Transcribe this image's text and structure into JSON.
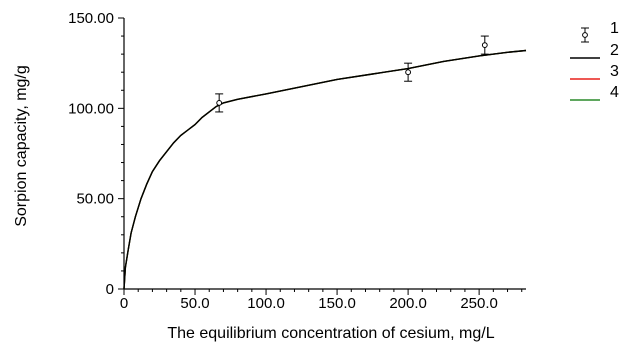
{
  "chart_data": {
    "type": "line",
    "xlabel": "The equilibrium concentration of cesium, mg/L",
    "ylabel": "Sorpion capacity, mg/g",
    "xlim": [
      0,
      283
    ],
    "ylim": [
      0,
      150
    ],
    "x_ticks": [
      0,
      50,
      100,
      150,
      200,
      250
    ],
    "x_tick_labels": [
      "0",
      "50.0",
      "100.0",
      "150.0",
      "200.0",
      "250.0"
    ],
    "y_ticks": [
      0,
      50,
      100,
      150
    ],
    "y_tick_labels": [
      "0",
      "50.00",
      "100.00",
      "150.00"
    ],
    "legend_position": "right",
    "series": [
      {
        "name": "1",
        "kind": "points-with-error-bars",
        "color": "#000000",
        "x": [
          67,
          200,
          254
        ],
        "y": [
          103,
          120,
          135
        ],
        "err": [
          5,
          5,
          5
        ]
      },
      {
        "name": "2",
        "kind": "line",
        "color": "#000000",
        "x": [
          0,
          1,
          3,
          5,
          8,
          12,
          16,
          20,
          25,
          30,
          35,
          40,
          45,
          50,
          55,
          60,
          65,
          70,
          80,
          100,
          125,
          150,
          175,
          200,
          225,
          250,
          270,
          283
        ],
        "y": [
          0,
          12,
          22,
          31,
          40,
          50,
          58,
          65,
          71,
          76,
          81,
          85,
          88,
          91,
          95,
          98,
          101,
          103,
          105,
          108,
          112,
          116,
          119,
          122,
          126,
          129,
          131,
          132
        ]
      },
      {
        "name": "3",
        "kind": "line",
        "color": "#e8211c",
        "x": [
          0,
          1,
          3,
          5,
          8,
          12,
          16,
          20,
          25,
          30,
          35,
          40,
          45,
          50,
          55,
          60,
          65,
          70,
          80,
          100,
          125,
          150,
          175,
          200,
          225,
          250,
          270,
          283
        ],
        "y": [
          0,
          12,
          22,
          31,
          40,
          50,
          58,
          65,
          71,
          76,
          81,
          85,
          88,
          91,
          95,
          98,
          101,
          103,
          105,
          108,
          112,
          116,
          119,
          122,
          126,
          129,
          131,
          132
        ]
      },
      {
        "name": "4",
        "kind": "line",
        "color": "#2a8a2a",
        "x": [
          0,
          1,
          3,
          5,
          8,
          12,
          16,
          20,
          25,
          30,
          35,
          40,
          45,
          50,
          55,
          60,
          65,
          70,
          80,
          100,
          125,
          150,
          175,
          200,
          225,
          250,
          270,
          283
        ],
        "y": [
          0,
          12,
          22,
          31,
          40,
          50,
          58,
          65,
          71,
          76,
          81,
          85,
          88,
          91,
          95,
          98,
          101,
          103,
          105,
          108,
          112,
          116,
          119,
          122,
          126,
          129,
          131,
          132
        ]
      }
    ]
  }
}
